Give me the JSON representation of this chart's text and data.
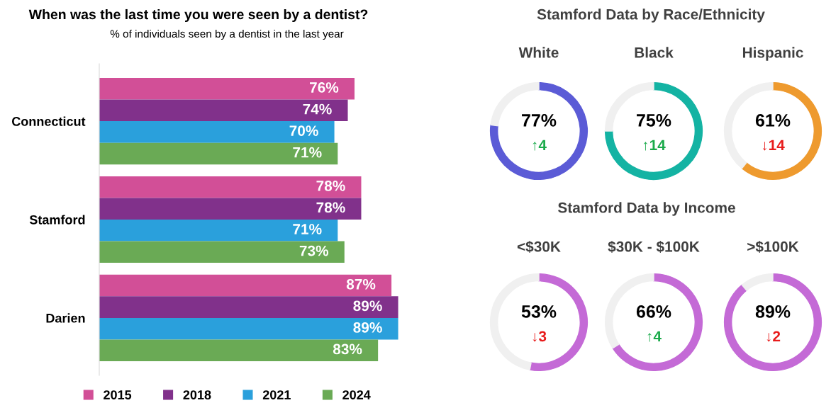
{
  "chart_data": [
    {
      "type": "bar",
      "orientation": "horizontal",
      "title": "When was the last time you were seen by a dentist?",
      "subtitle": "% of individuals seen by a dentist in the last year",
      "categories": [
        "Connecticut",
        "Stamford",
        "Darien"
      ],
      "legend": "bottom",
      "series": [
        {
          "name": "2015",
          "color": "#d24f97",
          "values": [
            76,
            78,
            87
          ],
          "value_labels": [
            "76%",
            "78%",
            "87%"
          ]
        },
        {
          "name": "2018",
          "color": "#81318b",
          "values": [
            74,
            78,
            89
          ],
          "value_labels": [
            "74%",
            "78%",
            "89%"
          ]
        },
        {
          "name": "2021",
          "color": "#2aa0dc",
          "values": [
            70,
            71,
            89
          ],
          "value_labels": [
            "70%",
            "71%",
            "89%"
          ]
        },
        {
          "name": "2024",
          "color": "#6aaa55",
          "values": [
            71,
            73,
            83
          ],
          "value_labels": [
            "71%",
            "73%",
            "83%"
          ]
        }
      ]
    },
    {
      "type": "other",
      "title": "Stamford Data by Race/Ethnicity"
    },
    {
      "type": "donut",
      "title": "White",
      "categories": [
        null,
        null
      ],
      "values": [
        77,
        23
      ],
      "colors": [
        "#5b5bd6",
        "#f0f0f0"
      ],
      "annotations": [
        "77%",
        "↑4"
      ]
    },
    {
      "type": "donut",
      "title": "Black",
      "categories": [
        null,
        null
      ],
      "values": [
        75,
        25
      ],
      "colors": [
        "#14b3a3",
        "#f0f0f0"
      ],
      "annotations": [
        "75%",
        "↑14"
      ]
    },
    {
      "type": "donut",
      "title": "Hispanic",
      "categories": [
        null,
        null
      ],
      "values": [
        61,
        39
      ],
      "colors": [
        "#ee9a2e",
        "#f0f0f0"
      ],
      "annotations": [
        "61%",
        "↓14"
      ]
    },
    {
      "type": "other",
      "title": "Stamford Data by Income"
    },
    {
      "type": "donut",
      "title": "<$30K",
      "categories": [
        null,
        null
      ],
      "values": [
        53,
        47
      ],
      "colors": [
        "#c46ad6",
        "#f0f0f0"
      ],
      "annotations": [
        "53%",
        "↓3"
      ]
    },
    {
      "type": "donut",
      "title": "$30K - $100K",
      "categories": [
        null,
        null
      ],
      "values": [
        66,
        34
      ],
      "colors": [
        "#c46ad6",
        "#f0f0f0"
      ],
      "annotations": [
        "66%",
        "↑4"
      ]
    },
    {
      "type": "donut",
      "title": ">$100K",
      "categories": [
        null,
        null
      ],
      "values": [
        89,
        11
      ],
      "colors": [
        "#c46ad6",
        "#f0f0f0"
      ],
      "annotations": [
        "89%",
        "↓2"
      ]
    }
  ]
}
